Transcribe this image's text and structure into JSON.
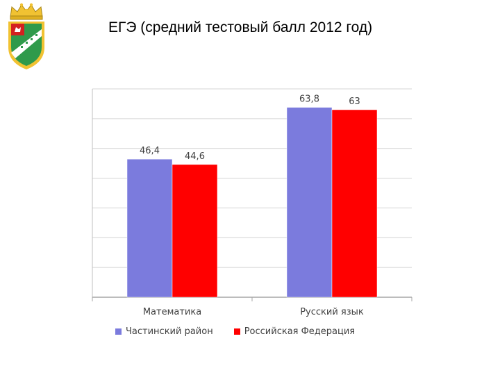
{
  "page": {
    "title": "ЕГЭ (средний тестовый балл 2012 год)"
  },
  "logo": {
    "icon": "coat-of-arms-icon",
    "colors": {
      "crown": "#f1c232",
      "field": "#2f9a4b",
      "shield_edge": "#c9a61c",
      "stripe": "#ffffff",
      "canton": "#d32020"
    }
  },
  "chart_data": {
    "type": "bar",
    "title": "",
    "xlabel": "",
    "ylabel": "",
    "categories": [
      "Математика",
      "Русский язык"
    ],
    "series": [
      {
        "name": "Частинский район",
        "values": [
          46.4,
          63.8
        ],
        "labels": [
          "46,4",
          "63,8"
        ],
        "color": "#7b7bdd"
      },
      {
        "name": "Российская Федерация",
        "values": [
          44.6,
          63
        ],
        "labels": [
          "44,6",
          "63"
        ],
        "color": "#ff0000"
      }
    ],
    "ylim": [
      0,
      70
    ],
    "y_step": 10,
    "grid": true,
    "y_tick_labels": false,
    "legend": "bottom"
  }
}
